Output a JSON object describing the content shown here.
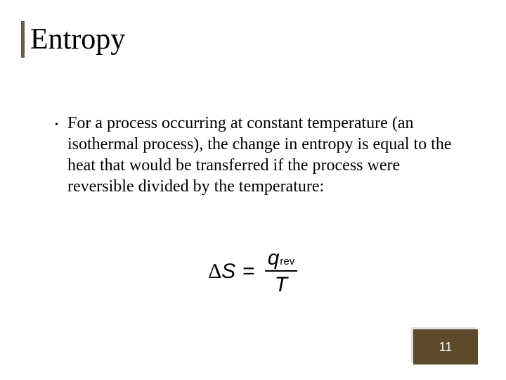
{
  "slide": {
    "title": "Entropy",
    "bullet": "For a process occurring at constant temperature (an isothermal process), the change in entropy is equal to the heat that would be transferred if the process were reversible divided by the temperature:",
    "equation": {
      "delta": "∆",
      "lhs_var": "S",
      "equals": "=",
      "numerator_var": "q",
      "numerator_sub": "rev",
      "denominator": "T"
    },
    "page_number": "11",
    "colors": {
      "title_accent": "#6b5d3f",
      "corner_box": "#5d4a2b",
      "text": "#000000",
      "page_num_text": "#ffffff",
      "background": "#ffffff"
    },
    "fonts": {
      "title_size_pt": 42,
      "body_size_pt": 24,
      "equation_size_pt": 30,
      "page_num_size_pt": 18,
      "title_family": "Times New Roman",
      "body_family": "Times New Roman",
      "equation_family": "Arial"
    }
  }
}
